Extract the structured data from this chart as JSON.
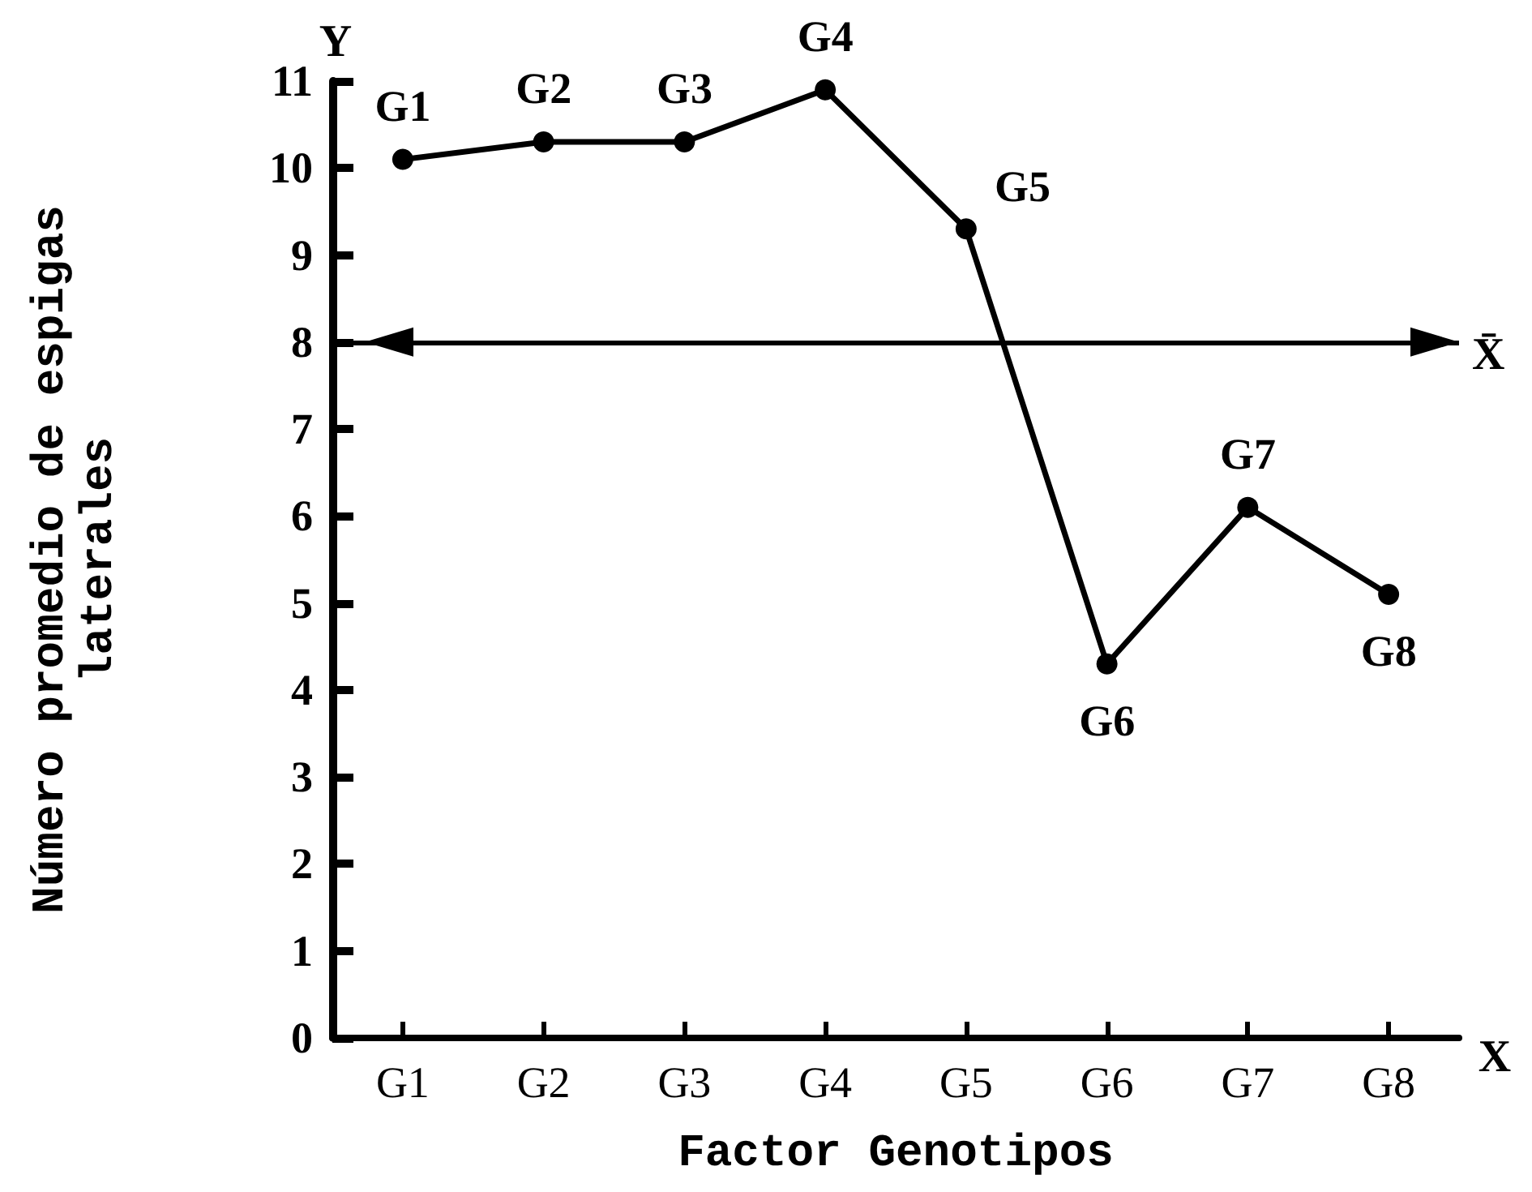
{
  "chart_data": {
    "type": "line",
    "xlabel": "Factor Genotipos",
    "ylabel": "Número promedio de espigas laterales",
    "categories": [
      "G1",
      "G2",
      "G3",
      "G4",
      "G5",
      "G6",
      "G7",
      "G8"
    ],
    "values": [
      10.1,
      10.3,
      10.3,
      10.9,
      9.3,
      4.3,
      6.1,
      5.1
    ],
    "color": "#000000",
    "value_labels": [
      "G1",
      "G2",
      "G3",
      "G4",
      "G5",
      "G6",
      "G7",
      "G8"
    ],
    "marker": "circle",
    "ylim": [
      0,
      11
    ],
    "yticks": [
      0,
      1,
      2,
      3,
      4,
      5,
      6,
      7,
      8,
      9,
      10,
      11
    ],
    "grid": false,
    "ref_lines": [
      {
        "axis": "y",
        "value": 8,
        "label": "X̄"
      }
    ],
    "annotations": [
      "Y",
      "X"
    ]
  }
}
